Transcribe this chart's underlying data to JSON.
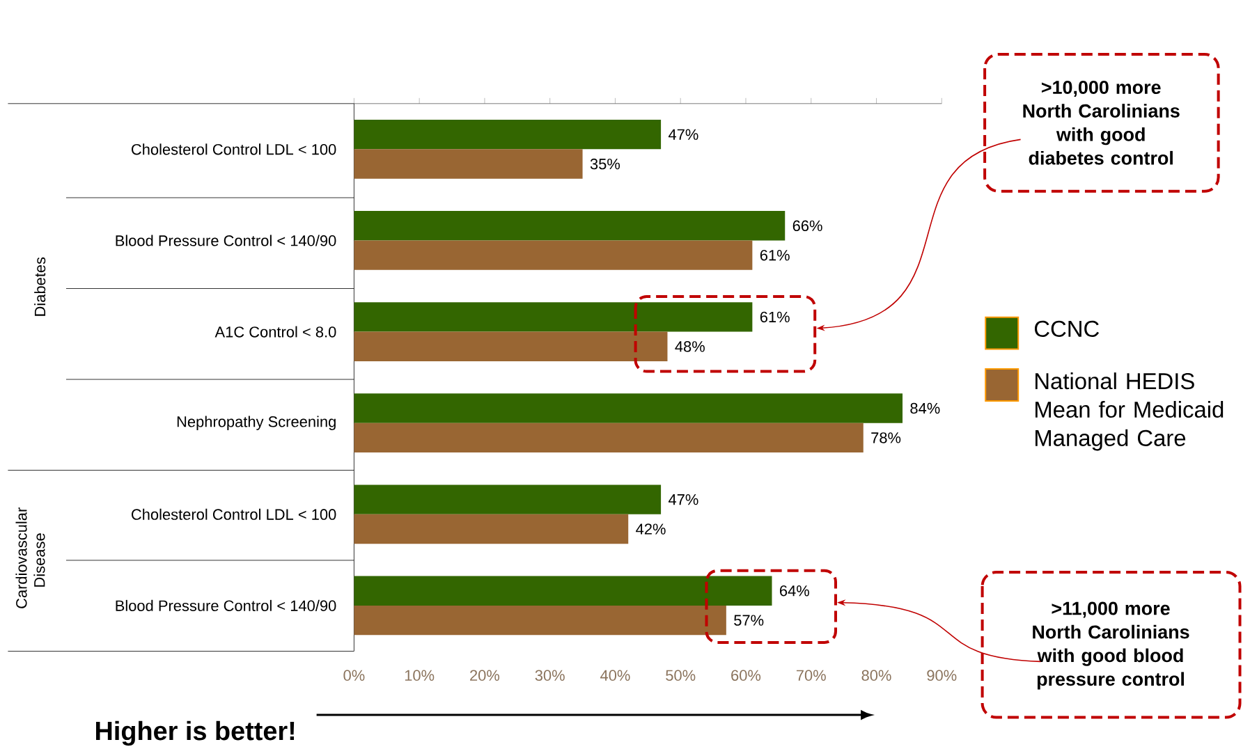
{
  "chart_data": {
    "type": "bar",
    "orientation": "horizontal",
    "categories": [
      "Cholesterol Control LDL < 100",
      "Blood Pressure Control < 140/90",
      "A1C Control < 8.0",
      "Nephropathy Screening",
      "Cholesterol Control LDL < 100",
      "Blood Pressure Control < 140/90"
    ],
    "series": [
      {
        "name": "CCNC",
        "color": "#336600",
        "values": [
          47,
          66,
          61,
          84,
          47,
          64
        ],
        "value_labels": [
          "47%",
          "66%",
          "61%",
          "84%",
          "47%",
          "64%"
        ]
      },
      {
        "name": "National HEDIS Mean for Medicaid Managed Care",
        "color": "#996633",
        "values": [
          35,
          61,
          48,
          78,
          42,
          57
        ],
        "value_labels": [
          "35%",
          "61%",
          "48%",
          "78%",
          "42%",
          "57%"
        ]
      }
    ],
    "xlim": [
      0,
      90
    ],
    "xticks": [
      {
        "value": 0,
        "label": "0%"
      },
      {
        "value": 10,
        "label": "10%"
      },
      {
        "value": 20,
        "label": "20%"
      },
      {
        "value": 30,
        "label": "30%"
      },
      {
        "value": 40,
        "label": "40%"
      },
      {
        "value": 50,
        "label": "50%"
      },
      {
        "value": 60,
        "label": "60%"
      },
      {
        "value": 70,
        "label": "70%"
      },
      {
        "value": 80,
        "label": "80%"
      },
      {
        "value": 90,
        "label": "90%"
      }
    ],
    "legend": "right",
    "annotations": [
      "Diabetes",
      "Cardiovascular Disease",
      ">10,000 more North Carolinians with good diabetes control",
      ">11,000 more North Carolinians with good blood pressure control",
      "Higher is better!"
    ]
  }
}
